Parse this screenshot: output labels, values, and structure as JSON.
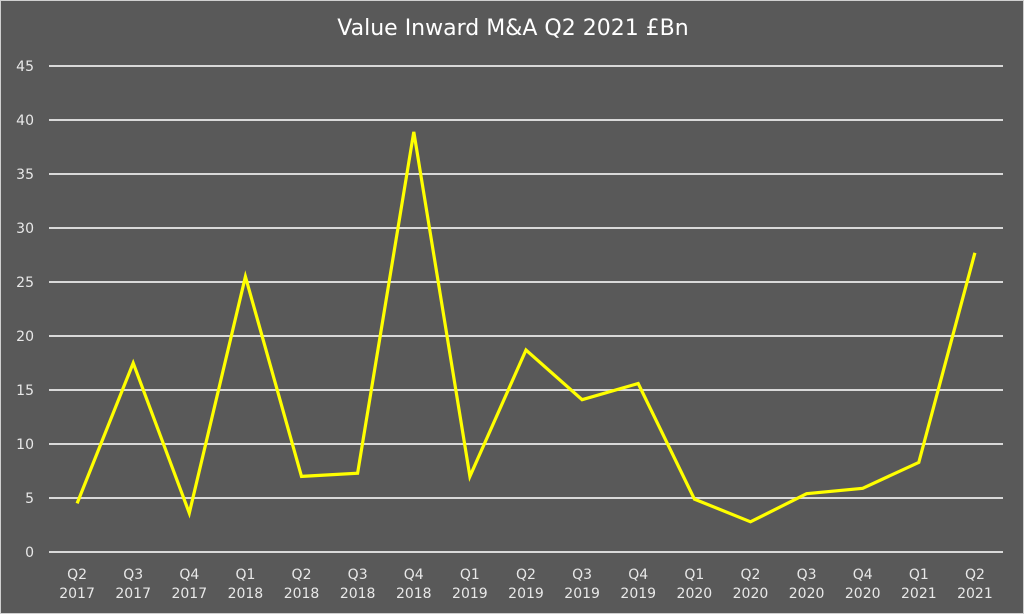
{
  "chart_data": {
    "type": "line",
    "title": "Value Inward M&A Q2 2021 £Bn",
    "xlabel": "",
    "ylabel": "",
    "ylim": [
      0,
      45
    ],
    "yticks": [
      "0",
      "5",
      "10",
      "15",
      "20",
      "25",
      "30",
      "35",
      "40",
      "45"
    ],
    "grid": true,
    "legend": "none",
    "categories": [
      [
        "Q2",
        "2017"
      ],
      [
        "Q3",
        "2017"
      ],
      [
        "Q4",
        "2017"
      ],
      [
        "Q1",
        "2018"
      ],
      [
        "Q2",
        "2018"
      ],
      [
        "Q3",
        "2018"
      ],
      [
        "Q4",
        "2018"
      ],
      [
        "Q1",
        "2019"
      ],
      [
        "Q2",
        "2019"
      ],
      [
        "Q3",
        "2019"
      ],
      [
        "Q4",
        "2019"
      ],
      [
        "Q1",
        "2020"
      ],
      [
        "Q2",
        "2020"
      ],
      [
        "Q3",
        "2020"
      ],
      [
        "Q4",
        "2020"
      ],
      [
        "Q1",
        "2021"
      ],
      [
        "Q2",
        "2021"
      ]
    ],
    "series": [
      {
        "name": "Value Inward M&A £Bn",
        "color": "#ffff00",
        "values": [
          4.5,
          17.5,
          3.6,
          25.5,
          7.0,
          7.3,
          38.9,
          7.0,
          18.7,
          14.1,
          15.6,
          4.9,
          2.8,
          5.4,
          5.9,
          8.3,
          27.7
        ]
      }
    ]
  },
  "colors": {
    "background": "#595959",
    "gridline": "#d9d9d9",
    "text": "#ffffff",
    "line": "#ffff00"
  }
}
